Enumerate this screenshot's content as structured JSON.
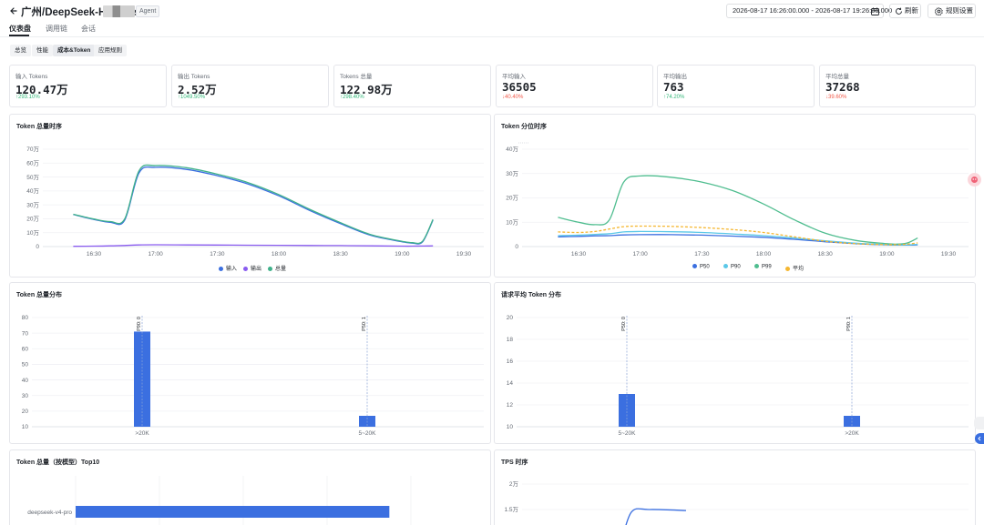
{
  "header": {
    "title": "广州/DeepSeek-Harness",
    "badge": "Agent",
    "date_range": "2026-08-17 16:26:00.000 - 2026-08-17 19:26:00.000",
    "refresh_label": "刷新",
    "rules_label": "规则设置"
  },
  "tabs": [
    {
      "label": "仪表盘",
      "active": true
    },
    {
      "label": "调用链",
      "active": false
    },
    {
      "label": "会话",
      "active": false
    }
  ],
  "subtabs": [
    {
      "label": "总览",
      "active": false
    },
    {
      "label": "性能",
      "active": false
    },
    {
      "label": "成本&Token",
      "active": true
    },
    {
      "label": "应用规则",
      "active": false
    }
  ],
  "stats": [
    {
      "label": "输入 Tokens",
      "value": "120.47万",
      "change": "↑293.10%",
      "direction": "up"
    },
    {
      "label": "输出 Tokens",
      "value": "2.52万",
      "change": "↑1049.50%",
      "direction": "up"
    },
    {
      "label": "Tokens 总量",
      "value": "122.98万",
      "change": "↑298.40%",
      "direction": "up"
    },
    {
      "label": "平均输入",
      "value": "36505",
      "change": "↓40.40%",
      "direction": "down"
    },
    {
      "label": "平均输出",
      "value": "763",
      "change": "↑74.20%",
      "direction": "up"
    },
    {
      "label": "平均总量",
      "value": "37268",
      "change": "↓39.60%",
      "direction": "down"
    }
  ],
  "colors": {
    "input": "#3b6fe0",
    "output": "#8a5cf0",
    "total": "#3fb18a",
    "p50": "#3b6fe0",
    "p90": "#5bc8e8",
    "p99": "#4fbd8f",
    "avg": "#f5b731",
    "bar": "#3b6fe0",
    "up": "#34b87a",
    "down": "#f15a4a"
  },
  "chart_data": [
    {
      "id": "token_total_timeseries",
      "type": "line",
      "title": "Token 总量时序",
      "x_ticks": [
        "16:30",
        "17:00",
        "17:30",
        "18:00",
        "18:30",
        "19:00",
        "19:30"
      ],
      "y_ticks": [
        "0",
        "10万",
        "20万",
        "30万",
        "40万",
        "50万",
        "60万",
        "70万"
      ],
      "ylim": [
        0,
        700000
      ],
      "x": [
        "16:20",
        "16:30",
        "16:38",
        "16:45",
        "16:52",
        "17:00",
        "17:15",
        "17:30",
        "17:45",
        "18:00",
        "18:15",
        "18:30",
        "18:45",
        "19:00",
        "19:05",
        "19:10",
        "19:15"
      ],
      "series": [
        {
          "name": "输入",
          "color_key": "input",
          "values": [
            230000,
            195000,
            175000,
            190000,
            530000,
            570000,
            555000,
            510000,
            450000,
            365000,
            260000,
            165000,
            80000,
            35000,
            25000,
            35000,
            190000
          ]
        },
        {
          "name": "输出",
          "color_key": "output",
          "values": [
            2000,
            3000,
            5000,
            8000,
            12000,
            13000,
            12000,
            11000,
            10000,
            9000,
            8000,
            7000,
            5000,
            3000,
            3000,
            4000,
            5000
          ]
        },
        {
          "name": "总量",
          "color_key": "total",
          "values": [
            232000,
            198000,
            180000,
            198000,
            545000,
            583000,
            567000,
            521000,
            460000,
            374000,
            268000,
            172000,
            85000,
            38000,
            28000,
            39000,
            195000
          ]
        }
      ],
      "legend": "bottom",
      "grid": true
    },
    {
      "id": "token_percentile_timeseries",
      "type": "line",
      "title": "Token 分位时序",
      "x_ticks": [
        "16:30",
        "17:00",
        "17:30",
        "18:00",
        "18:30",
        "19:00",
        "19:30"
      ],
      "y_ticks": [
        "0",
        "10万",
        "20万",
        "30万",
        "40万"
      ],
      "ylim": [
        0,
        400000
      ],
      "x": [
        "16:20",
        "16:30",
        "16:38",
        "16:45",
        "16:52",
        "17:00",
        "17:15",
        "17:30",
        "17:45",
        "18:00",
        "18:15",
        "18:30",
        "18:45",
        "19:00",
        "19:05",
        "19:10",
        "19:15"
      ],
      "series": [
        {
          "name": "P50",
          "color_key": "p50",
          "values": [
            40000,
            42000,
            44000,
            45000,
            48000,
            49000,
            49000,
            47000,
            43000,
            38000,
            30000,
            20000,
            12000,
            7000,
            6000,
            6000,
            7000
          ]
        },
        {
          "name": "P90",
          "color_key": "p90",
          "values": [
            45000,
            47000,
            50000,
            53000,
            60000,
            62000,
            61000,
            58000,
            52000,
            45000,
            35000,
            24000,
            14000,
            8000,
            7000,
            7000,
            9000
          ]
        },
        {
          "name": "P99",
          "color_key": "p99",
          "values": [
            120000,
            100000,
            90000,
            110000,
            265000,
            290000,
            285000,
            265000,
            230000,
            175000,
            110000,
            55000,
            25000,
            12000,
            10000,
            15000,
            35000
          ]
        },
        {
          "name": "平均",
          "color_key": "avg",
          "values": [
            60000,
            58000,
            62000,
            72000,
            82000,
            84000,
            83000,
            78000,
            70000,
            58000,
            40000,
            22000,
            12000,
            8000,
            8000,
            10000,
            15000
          ]
        }
      ],
      "legend": "bottom",
      "grid": true
    },
    {
      "id": "token_total_distribution",
      "type": "bar",
      "title": "Token 总量分布",
      "categories": [
        ">20K",
        "5~20K"
      ],
      "values": [
        71,
        17
      ],
      "y_ticks": [
        "10",
        "20",
        "30",
        "40",
        "50",
        "60",
        "70",
        "80"
      ],
      "ylim": [
        10,
        80
      ],
      "markers": [
        {
          "label": "P90: 0",
          "category_index": 0
        },
        {
          "label": "P50: 1",
          "category_index": 1
        }
      ]
    },
    {
      "id": "avg_token_distribution",
      "type": "bar",
      "title": "请求平均 Token 分布",
      "categories": [
        "5~20K",
        ">20K"
      ],
      "values": [
        13,
        11
      ],
      "y_ticks": [
        "10",
        "12",
        "14",
        "16",
        "18",
        "20"
      ],
      "ylim": [
        10,
        20
      ],
      "markers": [
        {
          "label": "P50: 0",
          "category_index": 0
        },
        {
          "label": "P90: 1",
          "category_index": 1
        }
      ]
    },
    {
      "id": "token_by_model_top10",
      "type": "bar",
      "title": "Token 总量（按模型）Top10",
      "categories": [
        "deepseek-v4-pro"
      ],
      "values": [
        1229800
      ]
    },
    {
      "id": "tps_timeseries",
      "type": "line",
      "title": "TPS 时序",
      "y_ticks": [
        "1.5万",
        "2万"
      ],
      "series": [
        {
          "name": "TPS",
          "color_key": "input",
          "values": [
            8000,
            14500,
            15000,
            14800
          ]
        }
      ]
    }
  ]
}
